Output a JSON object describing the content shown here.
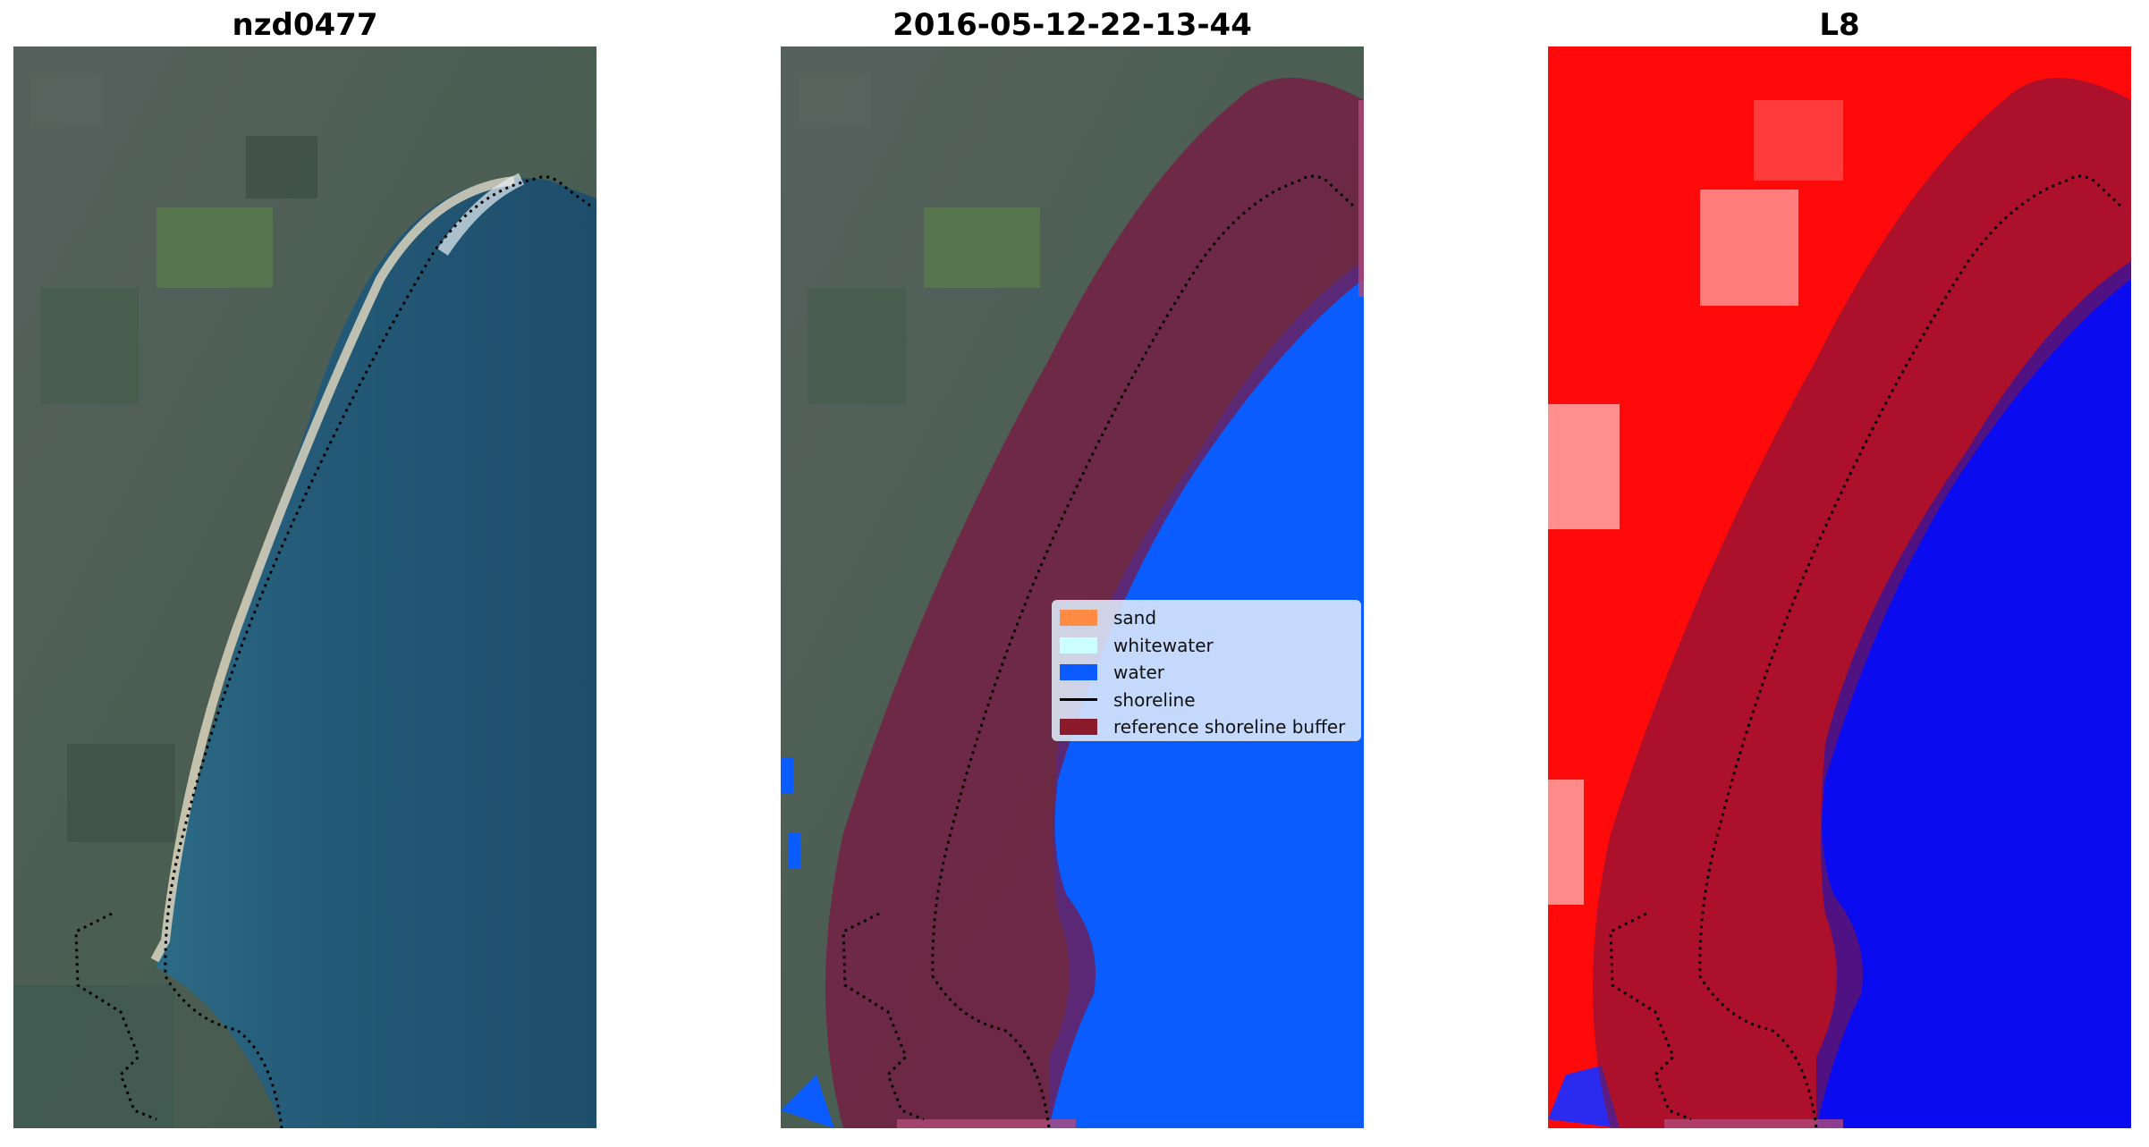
{
  "panels": [
    {
      "title": "nzd0477"
    },
    {
      "title": "2016-05-12-22-13-44"
    },
    {
      "title": "L8"
    }
  ],
  "legend": {
    "items": [
      {
        "label": "sand",
        "color": "#ff8c42",
        "kind": "patch"
      },
      {
        "label": "whitewater",
        "color": "#ccffff",
        "kind": "patch"
      },
      {
        "label": "water",
        "color": "#0a5cff",
        "kind": "patch"
      },
      {
        "label": "shoreline",
        "color": "#000000",
        "kind": "line"
      },
      {
        "label": "reference shoreline buffer",
        "color": "#8b1a2a",
        "kind": "patch"
      }
    ]
  },
  "colors": {
    "land": "#4a5e55",
    "ocean": "#22536f",
    "beach": "#cfc8b2",
    "water_class": "#0a5cff",
    "buffer_overlay": "#7a1540",
    "index_land": "#ff0a0a",
    "index_water": "#0b0bf0"
  }
}
